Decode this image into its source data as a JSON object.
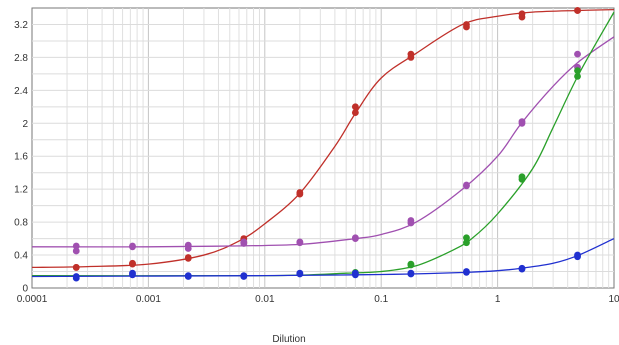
{
  "chart_data": {
    "type": "line",
    "title": "",
    "xlabel": "Dilution",
    "ylabel": "",
    "x_scale": "log",
    "xlim": [
      0.0001,
      10
    ],
    "ylim": [
      0,
      3.4
    ],
    "grid": true,
    "x_tick_labels": [
      "0.0001",
      "0.001",
      "0.01",
      "0.1",
      "1",
      "10"
    ],
    "x_tick_values": [
      0.0001,
      0.001,
      0.01,
      0.1,
      1,
      10
    ],
    "y_tick_values": [
      0,
      0.4,
      0.8,
      1.2,
      1.6,
      2,
      2.4,
      2.8,
      3.2
    ],
    "y_tick_labels": [
      "0",
      "0.4",
      "0.8",
      "1.2",
      "1.6",
      "2",
      "2.4",
      "2.8",
      "3.2"
    ],
    "series": [
      {
        "color": "#c0302a",
        "curve_x": [
          0.0001,
          0.0003,
          0.001,
          0.003,
          0.006,
          0.01,
          0.02,
          0.04,
          0.06,
          0.1,
          0.2,
          0.5,
          1,
          2,
          5,
          10
        ],
        "curve_y": [
          0.25,
          0.26,
          0.29,
          0.4,
          0.57,
          0.78,
          1.15,
          1.72,
          2.12,
          2.55,
          2.85,
          3.2,
          3.3,
          3.35,
          3.37,
          3.38
        ],
        "points_x": [
          0.00024,
          0.00024,
          0.00073,
          0.00073,
          0.0022,
          0.0022,
          0.0066,
          0.0066,
          0.02,
          0.02,
          0.06,
          0.06,
          0.18,
          0.18,
          0.54,
          0.54,
          1.62,
          1.62,
          4.86,
          4.86
        ],
        "points_y": [
          0.25,
          0.25,
          0.29,
          0.3,
          0.36,
          0.37,
          0.55,
          0.6,
          1.14,
          1.16,
          2.13,
          2.2,
          2.8,
          2.84,
          3.17,
          3.2,
          3.29,
          3.33,
          3.37,
          3.37
        ]
      },
      {
        "color": "#a050b0",
        "curve_x": [
          0.0001,
          0.001,
          0.005,
          0.02,
          0.06,
          0.1,
          0.2,
          0.5,
          1,
          1.6,
          3,
          5,
          10
        ],
        "curve_y": [
          0.5,
          0.5,
          0.51,
          0.53,
          0.6,
          0.65,
          0.8,
          1.2,
          1.6,
          2.0,
          2.45,
          2.75,
          3.05
        ],
        "points_x": [
          0.00024,
          0.00024,
          0.00073,
          0.00073,
          0.0022,
          0.0022,
          0.0066,
          0.0066,
          0.02,
          0.02,
          0.06,
          0.06,
          0.18,
          0.18,
          0.54,
          0.54,
          1.62,
          1.62,
          4.86,
          4.86
        ],
        "points_y": [
          0.45,
          0.51,
          0.5,
          0.51,
          0.48,
          0.52,
          0.54,
          0.56,
          0.55,
          0.56,
          0.6,
          0.61,
          0.79,
          0.82,
          1.24,
          1.25,
          2.0,
          2.02,
          2.68,
          2.84
        ]
      },
      {
        "color": "#2aa02a",
        "curve_x": [
          0.0001,
          0.01,
          0.05,
          0.1,
          0.2,
          0.4,
          0.6,
          1,
          2,
          3,
          5,
          10
        ],
        "curve_y": [
          0.15,
          0.15,
          0.18,
          0.2,
          0.27,
          0.45,
          0.6,
          0.9,
          1.45,
          1.95,
          2.6,
          3.35
        ],
        "points_x": [
          0.06,
          0.06,
          0.18,
          0.18,
          0.54,
          0.54,
          1.62,
          1.62,
          4.86,
          4.86
        ],
        "points_y": [
          0.18,
          0.19,
          0.28,
          0.29,
          0.55,
          0.61,
          1.32,
          1.35,
          2.57,
          2.64
        ]
      },
      {
        "color": "#2030d0",
        "curve_x": [
          0.0001,
          0.01,
          0.06,
          0.18,
          0.54,
          1,
          1.6,
          3,
          5,
          10
        ],
        "curve_y": [
          0.14,
          0.15,
          0.16,
          0.17,
          0.19,
          0.21,
          0.24,
          0.3,
          0.4,
          0.6
        ],
        "points_x": [
          0.00024,
          0.00024,
          0.00073,
          0.00073,
          0.0022,
          0.0022,
          0.0066,
          0.0066,
          0.02,
          0.02,
          0.06,
          0.06,
          0.18,
          0.18,
          0.54,
          0.54,
          1.62,
          1.62,
          4.86,
          4.86
        ],
        "points_y": [
          0.12,
          0.14,
          0.16,
          0.18,
          0.14,
          0.15,
          0.14,
          0.15,
          0.17,
          0.18,
          0.16,
          0.18,
          0.17,
          0.18,
          0.19,
          0.2,
          0.23,
          0.24,
          0.38,
          0.4
        ]
      }
    ]
  }
}
